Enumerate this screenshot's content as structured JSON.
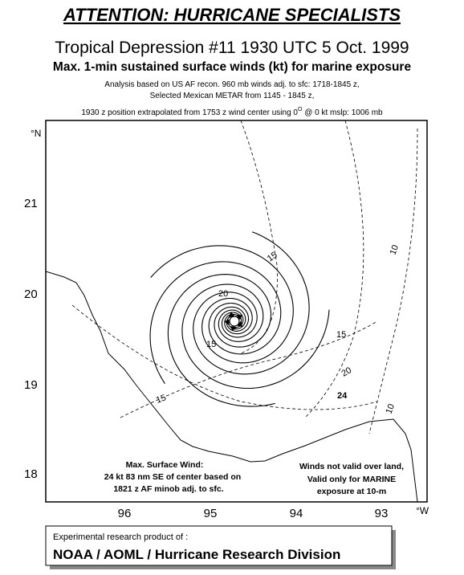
{
  "header": {
    "title": "ATTENTION: HURRICANE SPECIALISTS",
    "subtitle": "Tropical Depression #11 1930 UTC 5 Oct. 1999",
    "description": "Max. 1-min sustained surface winds (kt) for marine exposure",
    "notes": [
      "Analysis based on US AF recon. 960 mb winds adj. to sfc:  1718-1845 z,",
      "Selected Mexican METAR from 1145 - 1845 z,",
      {
        "before": "1930 z position extrapolated from 1753 z wind center using  0",
        "sup": "O",
        "after": " @ 0 kt  mslp: 1006 mb"
      }
    ]
  },
  "map": {
    "lat_unit": "°N",
    "lon_unit": "°W",
    "lat_labels": [
      "21",
      "20",
      "19",
      "18"
    ],
    "lon_labels": [
      "96",
      "95",
      "94",
      "93"
    ],
    "contour_labels": [
      "10",
      "15",
      "20",
      "15",
      "15",
      "20",
      "24",
      "10",
      "15"
    ],
    "annotations": {
      "max_wind": [
        "Max. Surface Wind:",
        "24 kt 83 nm SE of center based on",
        "1821 z AF minob adj. to sfc."
      ],
      "validity": [
        "Winds not valid over land,",
        "Valid only for MARINE",
        "exposure at 10-m"
      ]
    }
  },
  "footer": {
    "line1": "Experimental research product of :",
    "line2": "NOAA / AOML / Hurricane Research Division"
  }
}
